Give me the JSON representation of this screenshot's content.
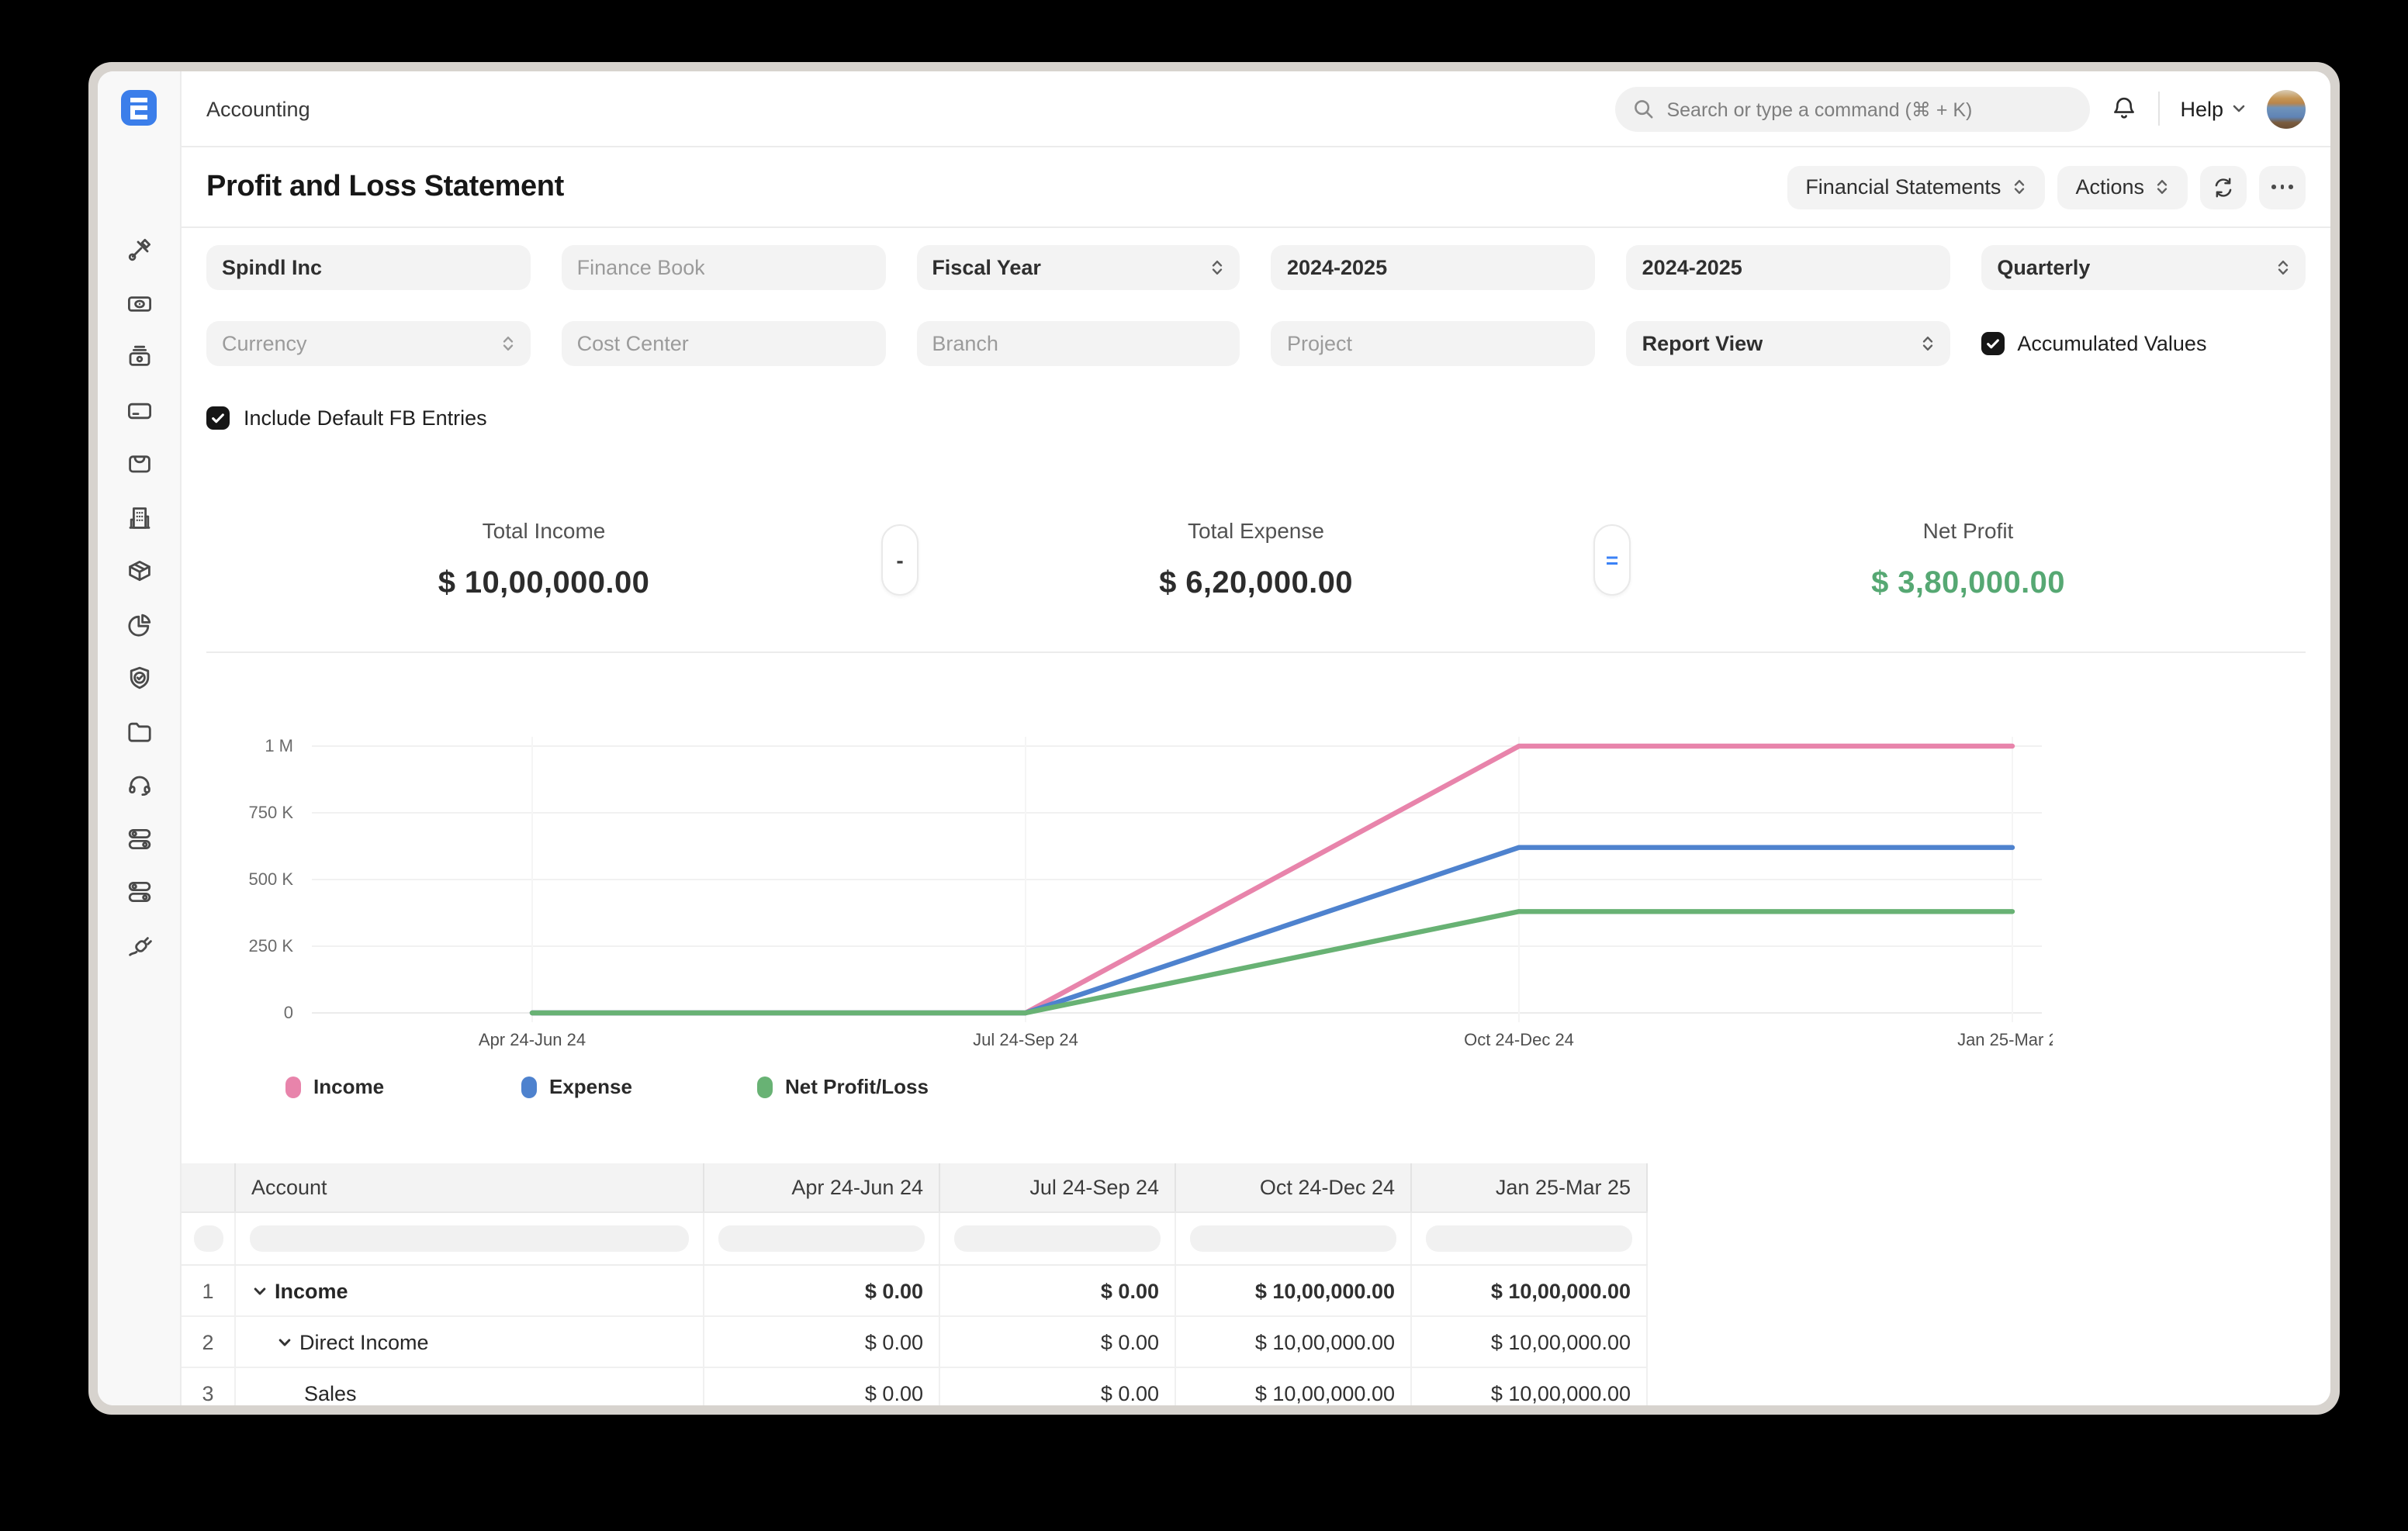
{
  "topbar": {
    "app_title": "Accounting",
    "search_placeholder": "Search or type a command (⌘ + K)",
    "help_label": "Help"
  },
  "page_header": {
    "title": "Profit and Loss Statement",
    "buttons": {
      "report_group": "Financial Statements",
      "actions": "Actions"
    }
  },
  "filters": {
    "fields": [
      {
        "label": "Spindl Inc",
        "state": "filled",
        "select": false
      },
      {
        "label": "Finance Book",
        "state": "placeholder",
        "select": false
      },
      {
        "label": "Fiscal Year",
        "state": "filled",
        "select": true
      },
      {
        "label": "2024-2025",
        "state": "filled",
        "select": false
      },
      {
        "label": "2024-2025",
        "state": "filled",
        "select": false
      },
      {
        "label": "Quarterly",
        "state": "filled",
        "select": true
      },
      {
        "label": "Currency",
        "state": "placeholder",
        "select": true
      },
      {
        "label": "Cost Center",
        "state": "placeholder",
        "select": false
      },
      {
        "label": "Branch",
        "state": "placeholder",
        "select": false
      },
      {
        "label": "Project",
        "state": "placeholder",
        "select": false
      },
      {
        "label": "Report View",
        "state": "filled",
        "select": true
      }
    ],
    "accumulated_values_label": "Accumulated Values",
    "accumulated_values_checked": true,
    "include_default_fb_label": "Include Default FB Entries",
    "include_default_fb_checked": true
  },
  "summary": {
    "items": [
      {
        "label": "Total Income",
        "value": "$ 10,00,000.00"
      },
      {
        "label": "Total Expense",
        "value": "$ 6,20,000.00"
      },
      {
        "label": "Net Profit",
        "value": "$ 3,80,000.00",
        "color": "#56a873"
      }
    ],
    "operators": [
      "-",
      "="
    ]
  },
  "chart_data": {
    "type": "line",
    "categories": [
      "Apr 24-Jun 24",
      "Jul 24-Sep 24",
      "Oct 24-Dec 24",
      "Jan 25-Mar 25"
    ],
    "series": [
      {
        "name": "Income",
        "values": [
          0,
          0,
          1000000,
          1000000
        ],
        "color": "#e884ab"
      },
      {
        "name": "Expense",
        "values": [
          0,
          0,
          620000,
          620000
        ],
        "color": "#4e82ce"
      },
      {
        "name": "Net Profit/Loss",
        "values": [
          0,
          0,
          380000,
          380000
        ],
        "color": "#68b274"
      }
    ],
    "y_ticks": [
      {
        "label": "0",
        "value": 0
      },
      {
        "label": "250 K",
        "value": 250000
      },
      {
        "label": "500 K",
        "value": 500000
      },
      {
        "label": "750 K",
        "value": 750000
      },
      {
        "label": "1 M",
        "value": 1000000
      }
    ],
    "ylim": [
      0,
      1000000
    ],
    "grid": true,
    "legend_position": "bottom"
  },
  "table": {
    "columns": [
      "Account",
      "Apr 24-Jun 24",
      "Jul 24-Sep 24",
      "Oct 24-Dec 24",
      "Jan 25-Mar 25"
    ],
    "rows": [
      {
        "num": "1",
        "account": "Income",
        "indent": 0,
        "chevron": true,
        "bold": true,
        "values": [
          "$ 0.00",
          "$ 0.00",
          "$ 10,00,000.00",
          "$ 10,00,000.00"
        ]
      },
      {
        "num": "2",
        "account": "Direct Income",
        "indent": 1,
        "chevron": true,
        "bold": false,
        "values": [
          "$ 0.00",
          "$ 0.00",
          "$ 10,00,000.00",
          "$ 10,00,000.00"
        ]
      },
      {
        "num": "3",
        "account": "Sales",
        "indent": 2,
        "chevron": false,
        "bold": false,
        "values": [
          "$ 0.00",
          "$ 0.00",
          "$ 10,00,000.00",
          "$ 10,00,000.00"
        ]
      }
    ]
  },
  "sidebar": {
    "icons": [
      "tools",
      "expense-claim",
      "cash-register",
      "credit-card",
      "shopping-bag",
      "building",
      "package",
      "pie-chart",
      "shield-check",
      "folder",
      "headset",
      "toggles",
      "toggles-alt",
      "plug"
    ]
  },
  "colors": {
    "logo_blue": "#3b7eea",
    "equals_blue": "#3b82f6",
    "income_line": "#e884ab",
    "expense_line": "#4e82ce",
    "net_line": "#68b274",
    "net_profit_text": "#56a873"
  }
}
